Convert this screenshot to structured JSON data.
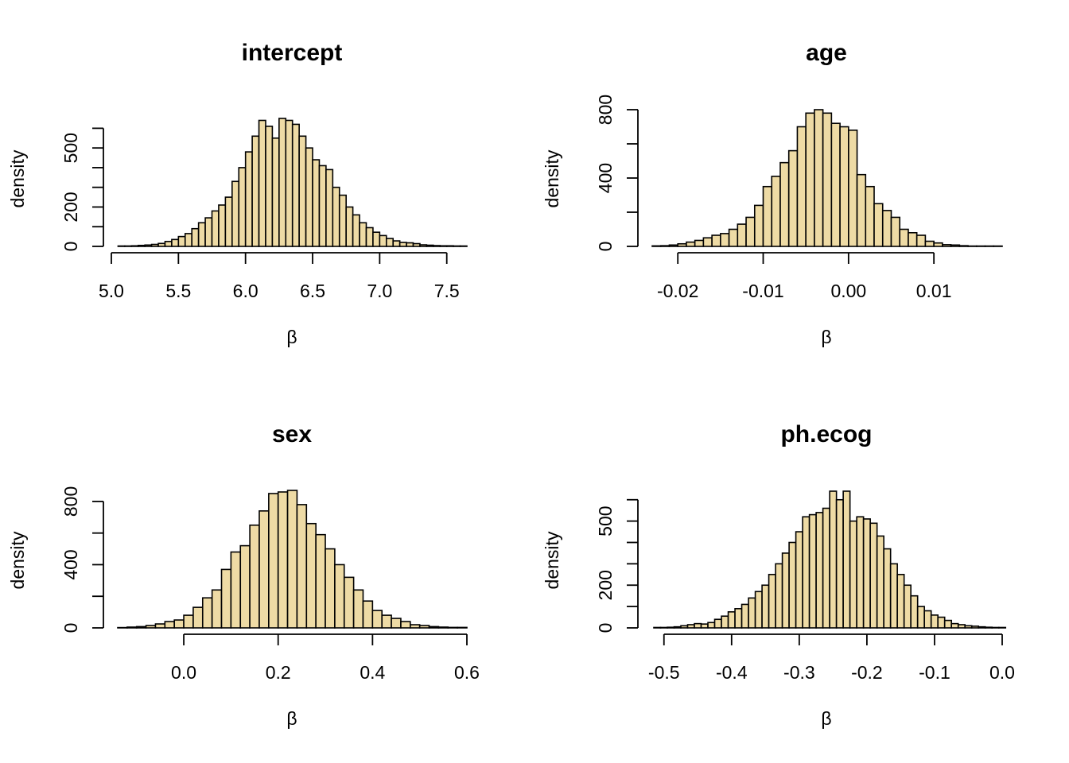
{
  "figure": {
    "background": "#ffffff",
    "bar_fill": "#eedba5",
    "bar_stroke": "#000000"
  },
  "chart_data": [
    {
      "type": "bar",
      "title": "intercept",
      "xlabel": "β",
      "ylabel": "density",
      "bin_start": 5.05,
      "bin_width": 0.05,
      "values": [
        2,
        2,
        3,
        5,
        7,
        10,
        15,
        25,
        35,
        50,
        65,
        90,
        120,
        145,
        180,
        210,
        250,
        330,
        400,
        480,
        560,
        640,
        610,
        550,
        650,
        640,
        620,
        560,
        500,
        440,
        410,
        390,
        300,
        260,
        200,
        160,
        120,
        95,
        72,
        55,
        40,
        28,
        20,
        18,
        14,
        8,
        6,
        4,
        3,
        3,
        2,
        2
      ],
      "xlim": [
        5.0,
        7.65
      ],
      "ylim": [
        0,
        650
      ],
      "xticks": [
        "5.0",
        "5.5",
        "6.0",
        "6.5",
        "7.0",
        "7.5"
      ],
      "xtick_values": [
        5.0,
        5.5,
        6.0,
        6.5,
        7.0,
        7.5
      ],
      "yticks": [
        "0",
        "200",
        "500"
      ],
      "ytick_values": [
        0,
        200,
        500
      ],
      "yminor": [
        100,
        300,
        400,
        600
      ]
    },
    {
      "type": "bar",
      "title": "age",
      "xlabel": "β",
      "ylabel": "density",
      "bin_start": -0.023,
      "bin_width": 0.001,
      "values": [
        3,
        4,
        8,
        15,
        25,
        35,
        50,
        65,
        75,
        100,
        130,
        170,
        240,
        350,
        410,
        490,
        560,
        700,
        780,
        800,
        780,
        720,
        700,
        680,
        420,
        350,
        250,
        210,
        170,
        100,
        80,
        65,
        30,
        20,
        10,
        8,
        4,
        2,
        2,
        2,
        2
      ],
      "xlim": [
        -0.023,
        0.018
      ],
      "ylim": [
        0,
        800
      ],
      "xticks": [
        "-0.02",
        "-0.01",
        "0.00",
        "0.01"
      ],
      "xtick_values": [
        -0.02,
        -0.01,
        0.0,
        0.01
      ],
      "yticks": [
        "0",
        "400",
        "800"
      ],
      "ytick_values": [
        0,
        400,
        800
      ],
      "yminor": [
        200,
        600
      ]
    },
    {
      "type": "bar",
      "title": "sex",
      "xlabel": "β",
      "ylabel": "density",
      "bin_start": -0.14,
      "bin_width": 0.02,
      "values": [
        2,
        5,
        8,
        15,
        25,
        40,
        50,
        80,
        130,
        190,
        240,
        370,
        480,
        520,
        650,
        740,
        850,
        860,
        870,
        780,
        660,
        590,
        500,
        400,
        320,
        240,
        170,
        110,
        80,
        60,
        40,
        20,
        15,
        8,
        5,
        3,
        3
      ],
      "xlim": [
        -0.14,
        0.6
      ],
      "ylim": [
        0,
        870
      ],
      "xticks": [
        "0.0",
        "0.2",
        "0.4",
        "0.6"
      ],
      "xtick_values": [
        0.0,
        0.2,
        0.4,
        0.6
      ],
      "yticks": [
        "0",
        "400",
        "800"
      ],
      "ytick_values": [
        0,
        400,
        800
      ],
      "yminor": [
        200,
        600
      ]
    },
    {
      "type": "bar",
      "title": "ph.ecog",
      "xlabel": "β",
      "ylabel": "density",
      "bin_start": -0.515,
      "bin_width": 0.01,
      "values": [
        2,
        2,
        3,
        5,
        10,
        15,
        20,
        18,
        25,
        40,
        55,
        75,
        90,
        110,
        140,
        170,
        200,
        250,
        300,
        350,
        400,
        450,
        520,
        530,
        540,
        560,
        640,
        600,
        640,
        500,
        520,
        510,
        490,
        430,
        370,
        300,
        250,
        200,
        150,
        100,
        80,
        60,
        50,
        35,
        20,
        15,
        10,
        8,
        5,
        3,
        2,
        2
      ],
      "xlim": [
        -0.515,
        0.0
      ],
      "ylim": [
        0,
        640
      ],
      "xticks": [
        "-0.5",
        "-0.4",
        "-0.3",
        "-0.2",
        "-0.1",
        "0.0"
      ],
      "xtick_values": [
        -0.5,
        -0.4,
        -0.3,
        -0.2,
        -0.1,
        0.0
      ],
      "yticks": [
        "0",
        "200",
        "500"
      ],
      "ytick_values": [
        0,
        200,
        500
      ],
      "yminor": [
        100,
        300,
        400,
        600
      ]
    }
  ]
}
